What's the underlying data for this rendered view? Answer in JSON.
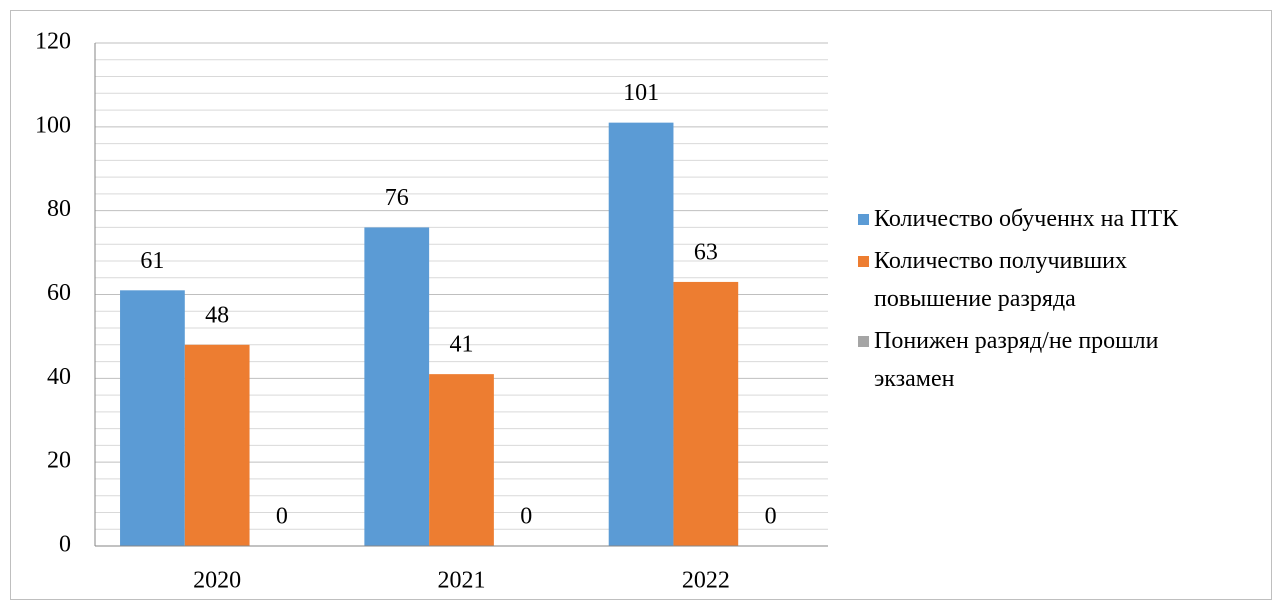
{
  "chart_data": {
    "type": "bar",
    "categories": [
      "2020",
      "2021",
      "2022"
    ],
    "series": [
      {
        "name": "Количество обученнх на ПТК",
        "color": "#5b9bd5",
        "values": [
          61,
          76,
          101
        ]
      },
      {
        "name": "Количество получивших повышение разряда",
        "color": "#ed7d31",
        "values": [
          48,
          41,
          63
        ]
      },
      {
        "name": "Понижен разряд/не прошли экзамен",
        "color": "#a5a5a5",
        "values": [
          0,
          0,
          0
        ]
      }
    ],
    "ylim": [
      0,
      120
    ],
    "yticks": [
      0,
      20,
      40,
      60,
      80,
      100,
      120
    ],
    "grid": true,
    "legend": "right"
  }
}
